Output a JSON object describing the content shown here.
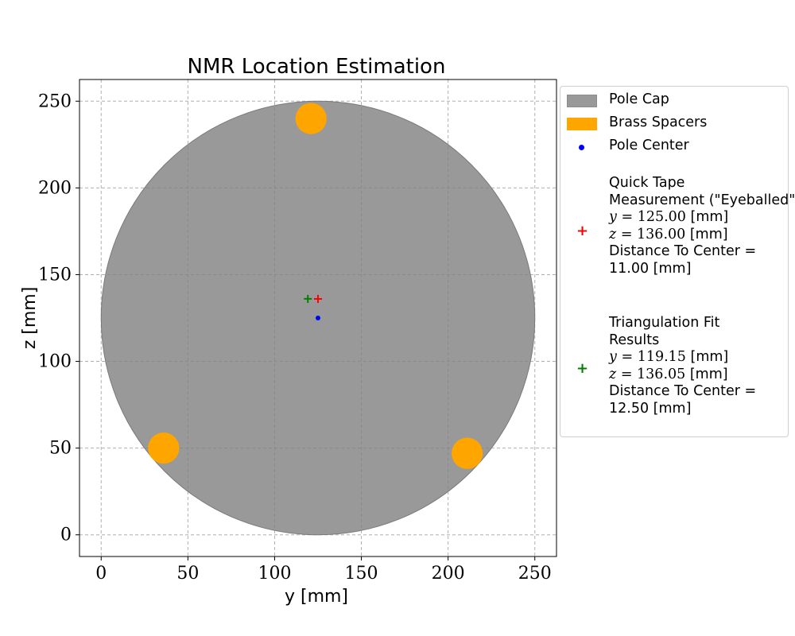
{
  "chart_data": {
    "type": "scatter",
    "title": "NMR Location Estimation",
    "xlabel": "y [mm]",
    "ylabel": "z [mm]",
    "xlim": [
      -12.5,
      262.5
    ],
    "ylim": [
      -12.5,
      262.5
    ],
    "xticks": [
      0,
      50,
      100,
      150,
      200,
      250
    ],
    "yticks": [
      0,
      50,
      100,
      150,
      200,
      250
    ],
    "grid": true,
    "legend_position": "outside right",
    "pole_cap": {
      "center": [
        125,
        125
      ],
      "radius": 125,
      "color": "#808080"
    },
    "brass_spacers": {
      "color": "#ffa500",
      "radius": 9,
      "positions": [
        [
          121,
          240
        ],
        [
          36,
          50
        ],
        [
          211,
          47
        ]
      ]
    },
    "pole_center": {
      "y": 125,
      "z": 125,
      "color": "#0000ff"
    },
    "quick_tape": {
      "y": 125.0,
      "z": 136.0,
      "color": "#ff0000"
    },
    "triangulation": {
      "y": 119.15,
      "z": 136.05,
      "color": "#008000"
    }
  },
  "legend": {
    "pole_cap": "Pole Cap",
    "brass_spacers": "Brass Spacers",
    "pole_center": "Pole Center",
    "quick_tape": {
      "line1": "Quick Tape",
      "line2": "Measurement (\"Eyeballed\")",
      "y_label": "y",
      "y_value": "= 125.00",
      "y_unit": "[mm]",
      "z_label": "z",
      "z_value": "= 136.00",
      "z_unit": "[mm]",
      "distance_label": "Distance To Center =",
      "distance_value": "11.00 [mm]"
    },
    "triangulation": {
      "line1": "Triangulation Fit",
      "line2": "Results",
      "y_label": "y",
      "y_value": "= 119.15",
      "y_unit": "[mm]",
      "z_label": "z",
      "z_value": "= 136.05",
      "z_unit": "[mm]",
      "distance_label": "Distance To Center =",
      "distance_value": "12.50 [mm]"
    }
  }
}
